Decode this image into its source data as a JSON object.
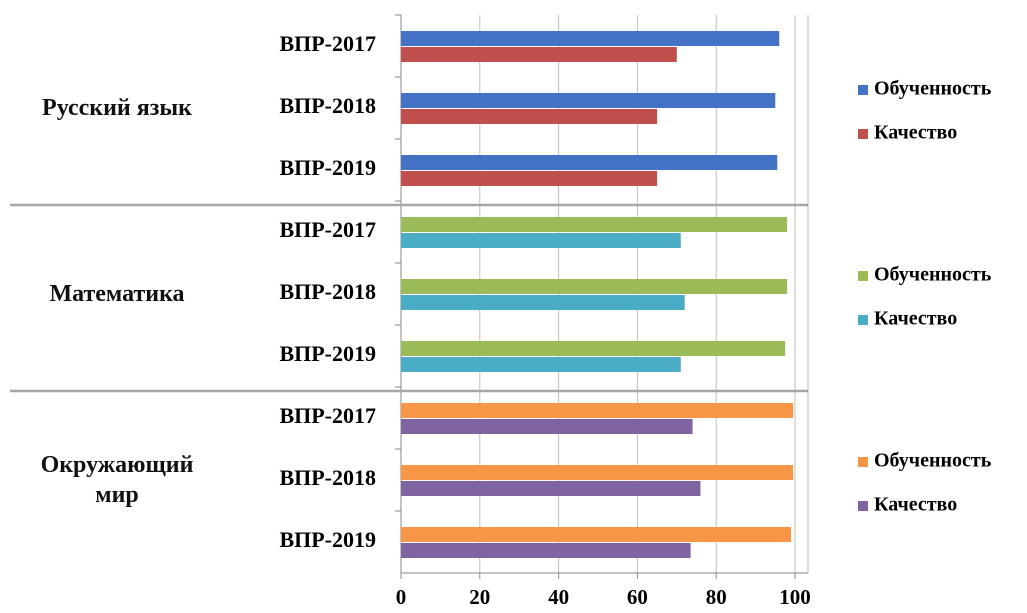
{
  "chart_data": {
    "type": "bar",
    "orientation": "horizontal",
    "xlim": [
      0,
      100
    ],
    "xticks": [
      0,
      20,
      40,
      60,
      80,
      100
    ],
    "grid": true,
    "groups": [
      {
        "name": "Русский язык",
        "categories": [
          "ВПР-2017",
          "ВПР-2018",
          "ВПР-2019"
        ],
        "series": [
          {
            "name": "Обученность",
            "color": "#4472c4",
            "values": [
              96,
              95,
              95.5
            ]
          },
          {
            "name": "Качество",
            "color": "#c0504d",
            "values": [
              70,
              65,
              65
            ]
          }
        ]
      },
      {
        "name": "Математика",
        "categories": [
          "ВПР-2017",
          "ВПР-2018",
          "ВПР-2019"
        ],
        "series": [
          {
            "name": "Обученность",
            "color": "#9bbb59",
            "values": [
              98,
              98,
              97.5
            ]
          },
          {
            "name": "Качество",
            "color": "#4bacc6",
            "values": [
              71,
              72,
              71
            ]
          }
        ]
      },
      {
        "name": "Окружающий мир",
        "categories": [
          "ВПР-2017",
          "ВПР-2018",
          "ВПР-2019"
        ],
        "series": [
          {
            "name": "Обученность",
            "color": "#f79646",
            "values": [
              99.5,
              99.5,
              99
            ]
          },
          {
            "name": "Качество",
            "color": "#8064a2",
            "values": [
              74,
              76,
              73.5
            ]
          }
        ]
      }
    ]
  }
}
